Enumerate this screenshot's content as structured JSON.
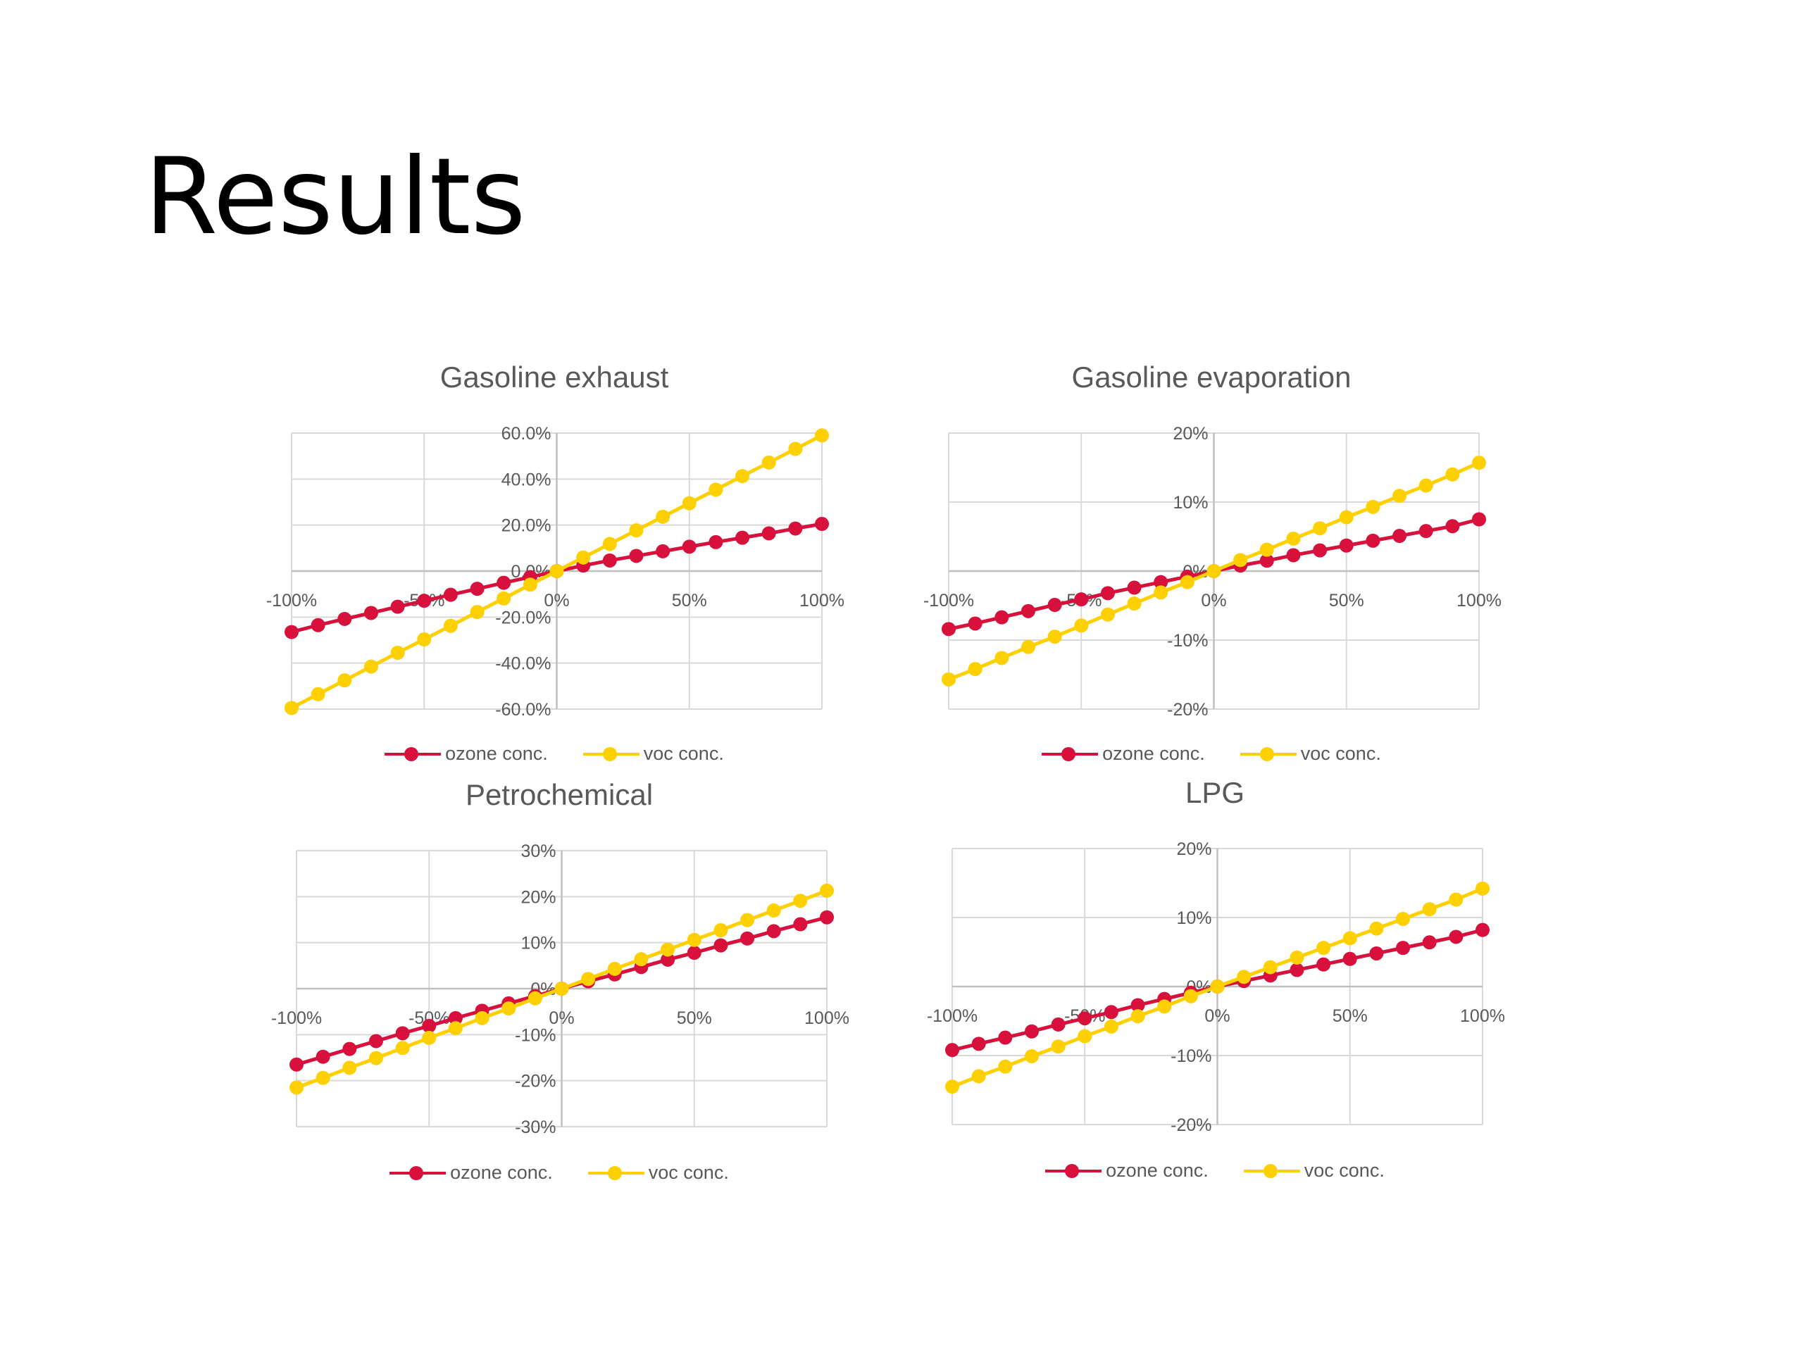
{
  "slide": {
    "title": "Results"
  },
  "colors": {
    "ozone": "#d7103c",
    "voc": "#ffd000",
    "grid": "#d9d9d9",
    "text": "#595959"
  },
  "chart_data": [
    {
      "type": "line",
      "title": "Gasoline exhaust",
      "x": [
        -100,
        -90,
        -80,
        -70,
        -60,
        -50,
        -40,
        -30,
        -20,
        -10,
        0,
        10,
        20,
        30,
        40,
        50,
        60,
        70,
        80,
        90,
        100
      ],
      "x_ticks": [
        "-100%",
        "-50%",
        "0%",
        "50%",
        "100%"
      ],
      "x_tick_values": [
        -100,
        -50,
        0,
        50,
        100
      ],
      "y_ticks": [
        "-60.0%",
        "-40.0%",
        "-20.0%",
        "0.0%",
        "20.0%",
        "40.0%",
        "60.0%"
      ],
      "y_tick_values": [
        -60,
        -40,
        -20,
        0,
        20,
        40,
        60
      ],
      "ylim": [
        -60,
        60
      ],
      "series": [
        {
          "name": "ozone conc.",
          "values": [
            -26.5,
            -23.5,
            -20.8,
            -18.2,
            -15.5,
            -12.9,
            -10.3,
            -7.7,
            -5.1,
            -2.6,
            0,
            2.4,
            4.6,
            6.6,
            8.6,
            10.6,
            12.6,
            14.5,
            16.4,
            18.5,
            20.5
          ]
        },
        {
          "name": "voc conc.",
          "values": [
            -59.5,
            -53.5,
            -47.5,
            -41.5,
            -35.5,
            -29.7,
            -23.8,
            -17.8,
            -11.9,
            -5.9,
            0,
            5.9,
            11.8,
            17.7,
            23.6,
            29.5,
            35.4,
            41.3,
            47.2,
            53.1,
            59
          ]
        }
      ]
    },
    {
      "type": "line",
      "title": "Gasoline evaporation",
      "x": [
        -100,
        -90,
        -80,
        -70,
        -60,
        -50,
        -40,
        -30,
        -20,
        -10,
        0,
        10,
        20,
        30,
        40,
        50,
        60,
        70,
        80,
        90,
        100
      ],
      "x_ticks": [
        "-100%",
        "-50%",
        "0%",
        "50%",
        "100%"
      ],
      "x_tick_values": [
        -100,
        -50,
        0,
        50,
        100
      ],
      "y_ticks": [
        "-20%",
        "-10%",
        "0%",
        "10%",
        "20%"
      ],
      "y_tick_values": [
        -20,
        -10,
        0,
        10,
        20
      ],
      "ylim": [
        -20,
        20
      ],
      "series": [
        {
          "name": "ozone conc.",
          "values": [
            -8.4,
            -7.6,
            -6.7,
            -5.8,
            -4.9,
            -4.1,
            -3.2,
            -2.4,
            -1.6,
            -0.8,
            0,
            0.8,
            1.5,
            2.3,
            3,
            3.7,
            4.4,
            5.1,
            5.8,
            6.5,
            7.5
          ]
        },
        {
          "name": "voc conc.",
          "values": [
            -15.7,
            -14.2,
            -12.6,
            -11,
            -9.5,
            -7.9,
            -6.3,
            -4.7,
            -3.1,
            -1.6,
            0,
            1.6,
            3.1,
            4.7,
            6.2,
            7.8,
            9.3,
            10.9,
            12.4,
            14,
            15.7
          ]
        }
      ]
    },
    {
      "type": "line",
      "title": "Petrochemical",
      "x": [
        -100,
        -90,
        -80,
        -70,
        -60,
        -50,
        -40,
        -30,
        -20,
        -10,
        0,
        10,
        20,
        30,
        40,
        50,
        60,
        70,
        80,
        90,
        100
      ],
      "x_ticks": [
        "-100%",
        "-50%",
        "0%",
        "50%",
        "100%"
      ],
      "x_tick_values": [
        -100,
        -50,
        0,
        50,
        100
      ],
      "y_ticks": [
        "-30%",
        "-20%",
        "-10%",
        "0%",
        "10%",
        "20%",
        "30%"
      ],
      "y_tick_values": [
        -30,
        -20,
        -10,
        0,
        10,
        20,
        30
      ],
      "ylim": [
        -30,
        30
      ],
      "series": [
        {
          "name": "ozone conc.",
          "values": [
            -16.5,
            -14.8,
            -13.1,
            -11.4,
            -9.7,
            -8.1,
            -6.4,
            -4.8,
            -3.2,
            -1.6,
            0,
            1.6,
            3.1,
            4.7,
            6.3,
            7.8,
            9.4,
            10.9,
            12.5,
            14,
            15.5
          ]
        },
        {
          "name": "voc conc.",
          "values": [
            -21.5,
            -19.4,
            -17.2,
            -15.1,
            -12.9,
            -10.7,
            -8.6,
            -6.4,
            -4.3,
            -2.1,
            0,
            2.1,
            4.3,
            6.4,
            8.5,
            10.6,
            12.7,
            14.9,
            17,
            19.1,
            21.3
          ]
        }
      ]
    },
    {
      "type": "line",
      "title": "LPG",
      "x": [
        -100,
        -90,
        -80,
        -70,
        -60,
        -50,
        -40,
        -30,
        -20,
        -10,
        0,
        10,
        20,
        30,
        40,
        50,
        60,
        70,
        80,
        90,
        100
      ],
      "x_ticks": [
        "-100%",
        "-50%",
        "0%",
        "50%",
        "100%"
      ],
      "x_tick_values": [
        -100,
        -50,
        0,
        50,
        100
      ],
      "y_ticks": [
        "-20%",
        "-10%",
        "0%",
        "10%",
        "20%"
      ],
      "y_tick_values": [
        -20,
        -10,
        0,
        10,
        20
      ],
      "ylim": [
        -20,
        20
      ],
      "series": [
        {
          "name": "ozone conc.",
          "values": [
            -9.2,
            -8.3,
            -7.4,
            -6.5,
            -5.5,
            -4.6,
            -3.7,
            -2.7,
            -1.8,
            -0.9,
            0,
            0.8,
            1.6,
            2.4,
            3.2,
            4,
            4.8,
            5.6,
            6.4,
            7.2,
            8.2
          ]
        },
        {
          "name": "voc conc.",
          "values": [
            -14.5,
            -13,
            -11.6,
            -10.1,
            -8.7,
            -7.2,
            -5.8,
            -4.3,
            -2.9,
            -1.4,
            0,
            1.4,
            2.8,
            4.2,
            5.6,
            7,
            8.4,
            9.8,
            11.2,
            12.6,
            14.2
          ]
        }
      ]
    }
  ]
}
